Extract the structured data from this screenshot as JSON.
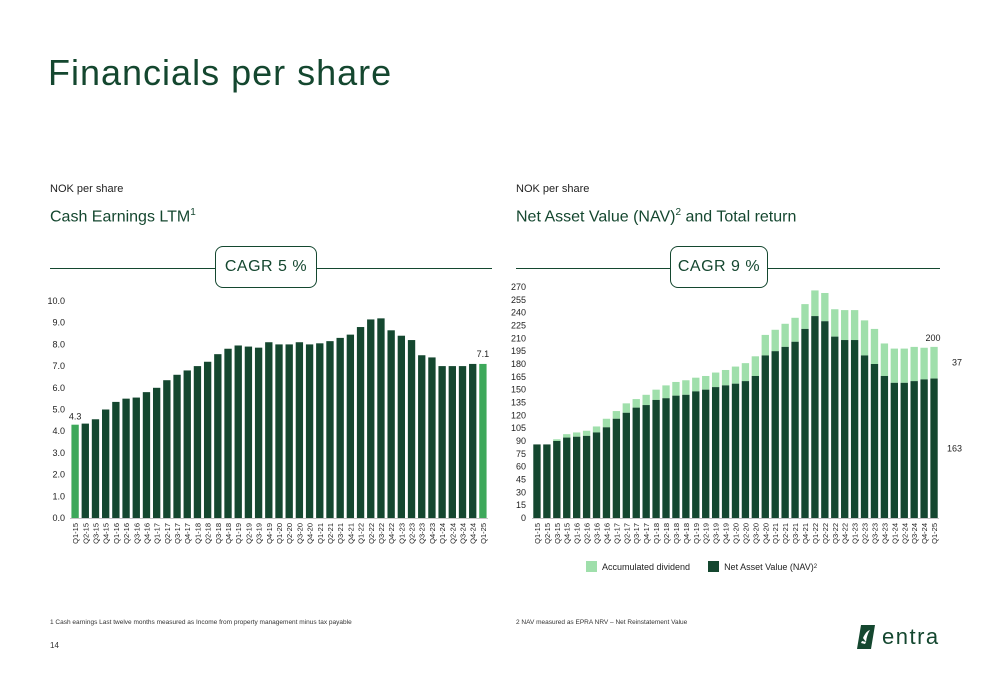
{
  "page": {
    "title": "Financials per share",
    "page_number": "14",
    "logo_text": "entra",
    "colors": {
      "dark_green": "#14472f",
      "mid_green": "#3da85a",
      "light_green": "#9fdfab"
    }
  },
  "left": {
    "unit_label": "NOK per share",
    "title": "Cash Earnings LTM",
    "title_sup": "1",
    "cagr": "CAGR 5 %",
    "footnote": "1  Cash earnings Last twelve months measured as Income from property management minus tax payable"
  },
  "right": {
    "unit_label": "NOK per share",
    "title": "Net Asset Value (NAV)",
    "title_sup": "2",
    "title_suffix": " and Total return",
    "cagr": "CAGR 9 %",
    "footnote": "2  NAV measured as EPRA NRV – Net Reinstatement Value",
    "legend_dividend": "Accumulated dividend",
    "legend_nav": "Net Asset Value (NAV)",
    "legend_nav_sup": "2"
  },
  "chart_data": [
    {
      "type": "bar",
      "ylim": [
        0,
        10
      ],
      "yticks": [
        "0.0",
        "1.0",
        "2.0",
        "3.0",
        "4.0",
        "5.0",
        "6.0",
        "7.0",
        "8.0",
        "9.0",
        "10.0"
      ],
      "categories": [
        "Q1-15",
        "Q2-15",
        "Q3-15",
        "Q4-15",
        "Q1-16",
        "Q2-16",
        "Q3-16",
        "Q4-16",
        "Q1-17",
        "Q2-17",
        "Q3-17",
        "Q4-17",
        "Q1-18",
        "Q2-18",
        "Q3-18",
        "Q4-18",
        "Q1-19",
        "Q2-19",
        "Q3-19",
        "Q4-19",
        "Q1-20",
        "Q2-20",
        "Q3-20",
        "Q4-20",
        "Q1-21",
        "Q2-21",
        "Q3-21",
        "Q4-21",
        "Q1-22",
        "Q2-22",
        "Q3-22",
        "Q4-22",
        "Q1-23",
        "Q2-23",
        "Q3-23",
        "Q4-23",
        "Q1-24",
        "Q2-24",
        "Q3-24",
        "Q4-24",
        "Q1-25"
      ],
      "values": [
        4.3,
        4.35,
        4.55,
        5.0,
        5.35,
        5.5,
        5.55,
        5.8,
        6.0,
        6.35,
        6.6,
        6.8,
        7.0,
        7.2,
        7.55,
        7.8,
        7.95,
        7.9,
        7.85,
        8.1,
        8.0,
        8.0,
        8.1,
        8.0,
        8.05,
        8.15,
        8.3,
        8.45,
        8.8,
        9.15,
        9.2,
        8.65,
        8.4,
        8.2,
        7.5,
        7.4,
        7.0,
        7.0,
        7.0,
        7.1,
        7.1
      ],
      "data_labels": {
        "first": "4.3",
        "last": "7.1"
      }
    },
    {
      "type": "bar",
      "stacked": true,
      "ylim": [
        0,
        270
      ],
      "yticks": [
        "0",
        "15",
        "30",
        "45",
        "60",
        "75",
        "90",
        "105",
        "120",
        "135",
        "150",
        "165",
        "180",
        "195",
        "210",
        "225",
        "240",
        "255",
        "270"
      ],
      "categories": [
        "Q1-15",
        "Q2-15",
        "Q3-15",
        "Q4-15",
        "Q1-16",
        "Q2-16",
        "Q3-16",
        "Q4-16",
        "Q1-17",
        "Q2-17",
        "Q3-17",
        "Q4-17",
        "Q1-18",
        "Q2-18",
        "Q3-18",
        "Q4-18",
        "Q1-19",
        "Q2-19",
        "Q3-19",
        "Q4-19",
        "Q1-20",
        "Q2-20",
        "Q3-20",
        "Q4-20",
        "Q1-21",
        "Q2-21",
        "Q3-21",
        "Q4-21",
        "Q1-22",
        "Q2-22",
        "Q3-22",
        "Q4-22",
        "Q1-23",
        "Q2-23",
        "Q3-23",
        "Q4-23",
        "Q1-24",
        "Q2-24",
        "Q3-24",
        "Q4-24",
        "Q1-25"
      ],
      "series": [
        {
          "name": "Net Asset Value (NAV)",
          "values": [
            86,
            86,
            90,
            94,
            95,
            96,
            100,
            106,
            116,
            123,
            129,
            132,
            138,
            140,
            143,
            144,
            148,
            150,
            153,
            155,
            157,
            160,
            166,
            190,
            195,
            200,
            206,
            221,
            236,
            230,
            212,
            208,
            208,
            190,
            180,
            166,
            158,
            158,
            160,
            162,
            163
          ]
        },
        {
          "name": "Accumulated dividend",
          "values": [
            0,
            0,
            2,
            4,
            5,
            6,
            7,
            10,
            9,
            11,
            10,
            12,
            12,
            15,
            16,
            17,
            16,
            16,
            17,
            18,
            20,
            21,
            23,
            24,
            25,
            27,
            28,
            29,
            30,
            33,
            32,
            35,
            35,
            41,
            41,
            38,
            40,
            40,
            40,
            37,
            37
          ]
        }
      ],
      "data_labels": {
        "total": "200",
        "dividend": "37",
        "nav": "163"
      }
    }
  ]
}
